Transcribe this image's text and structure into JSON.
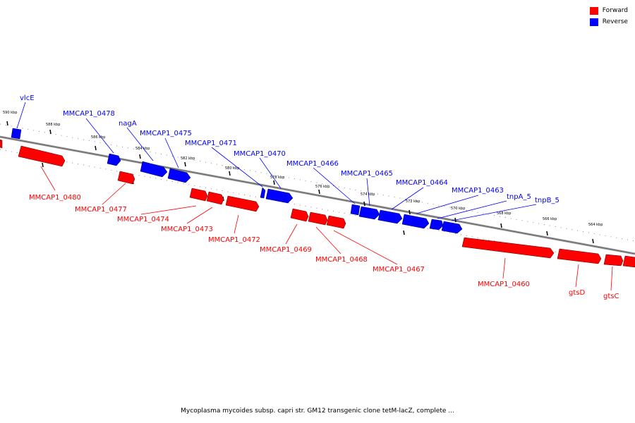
{
  "legend": {
    "forward_label": "Forward",
    "reverse_label": "Reverse",
    "forward_color": "#ff0000",
    "reverse_color": "#0000ff"
  },
  "caption": "Mycoplasma mycoides subsp. capri str. GM12 transgenic clone tetM-lacZ, complete ...",
  "ticks": [
    "590 kbp",
    "588 kbp",
    "586 kbp",
    "584 kbp",
    "582 kbp",
    "580 kbp",
    "578 kbp",
    "576 kbp",
    "574 kbp",
    "572 kbp",
    "570 kbp",
    "568 kbp",
    "566 kbp",
    "564 kbp"
  ],
  "genes": {
    "vlcE": "vlcE",
    "g0478": "MMCAP1_0478",
    "nagA": "nagA",
    "g0475": "MMCAP1_0475",
    "g0471": "MMCAP1_0471",
    "g0470": "MMCAP1_0470",
    "g0466": "MMCAP1_0466",
    "g0465": "MMCAP1_0465",
    "g0464": "MMCAP1_0464",
    "g0463": "MMCAP1_0463",
    "tnpA5": "tnpA_5",
    "tnpB5": "tnpB_5",
    "g0480": "MMCAP1_0480",
    "g0477": "MMCAP1_0477",
    "g0474": "MMCAP1_0474",
    "g0473": "MMCAP1_0473",
    "g0472": "MMCAP1_0472",
    "g0469": "MMCAP1_0469",
    "g0468": "MMCAP1_0468",
    "g0467": "MMCAP1_0467",
    "g0460": "MMCAP1_0460",
    "gtsD": "gtsD",
    "gtsC": "gtsC"
  }
}
